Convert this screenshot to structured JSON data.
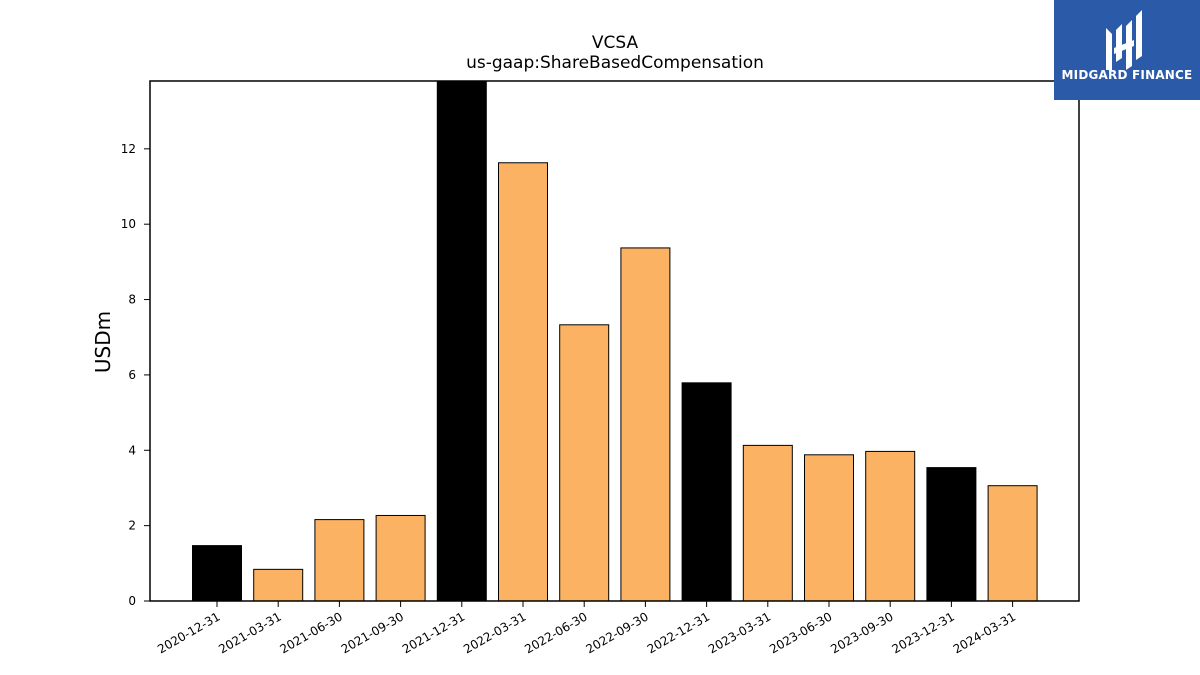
{
  "chart_data": {
    "type": "bar",
    "title": "VCSA",
    "subtitle": "us-gaap:ShareBasedCompensation",
    "xlabel": "",
    "ylabel": "USDm",
    "categories": [
      "2020-12-31",
      "2021-03-31",
      "2021-06-30",
      "2021-09-30",
      "2021-12-31",
      "2022-03-31",
      "2022-06-30",
      "2022-09-30",
      "2022-12-31",
      "2023-03-31",
      "2023-06-30",
      "2023-09-30",
      "2023-12-31",
      "2024-03-31"
    ],
    "values": [
      1.47,
      0.84,
      2.16,
      2.27,
      13.8,
      11.63,
      7.33,
      9.37,
      5.79,
      4.13,
      3.88,
      3.97,
      3.54,
      3.06
    ],
    "bar_colors": [
      "#000000",
      "#fbb363",
      "#fbb363",
      "#fbb363",
      "#000000",
      "#fbb363",
      "#fbb363",
      "#fbb363",
      "#000000",
      "#fbb363",
      "#fbb363",
      "#fbb363",
      "#000000",
      "#fbb363"
    ],
    "ylim": [
      0,
      13.8
    ],
    "yticks": [
      0,
      2,
      4,
      6,
      8,
      10,
      12
    ],
    "grid": false
  },
  "logo": {
    "text": "MIDGARD FINANCE",
    "background": "#2a5aa8"
  }
}
